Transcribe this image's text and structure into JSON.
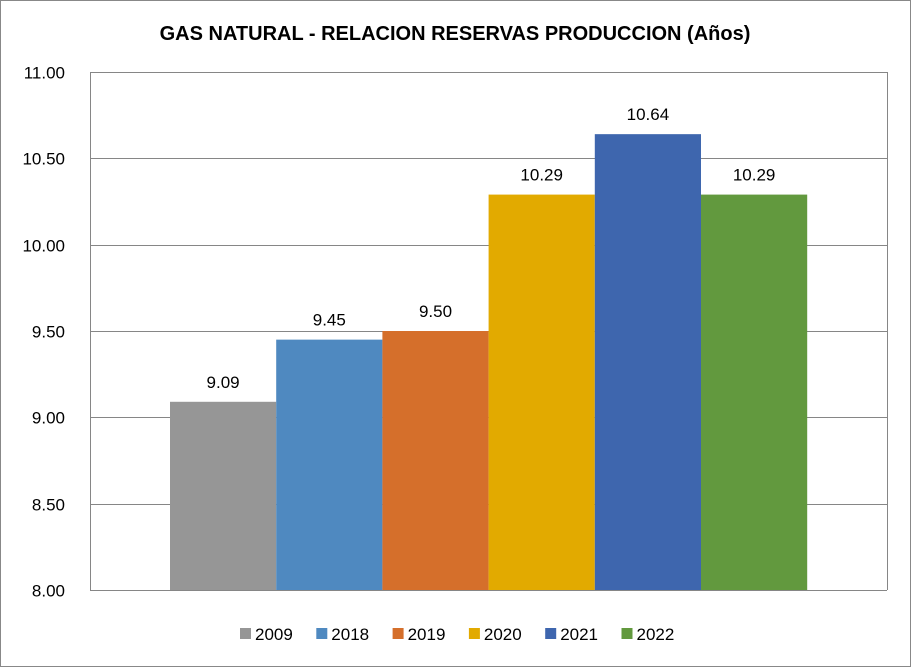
{
  "chart_data": {
    "type": "bar",
    "title": "GAS NATURAL - RELACION RESERVAS PRODUCCION (Años)",
    "xlabel": "",
    "ylabel": "",
    "ylim": [
      8.0,
      11.0
    ],
    "yticks": [
      "8.00",
      "8.50",
      "9.00",
      "9.50",
      "10.00",
      "10.50",
      "11.00"
    ],
    "grid": true,
    "legend_position": "bottom",
    "series": [
      {
        "name": "2009",
        "value": 9.09,
        "label": "9.09",
        "color": "#969696"
      },
      {
        "name": "2018",
        "value": 9.45,
        "label": "9.45",
        "color": "#4f89c0"
      },
      {
        "name": "2019",
        "value": 9.5,
        "label": "9.50",
        "color": "#d56f2b"
      },
      {
        "name": "2020",
        "value": 10.29,
        "label": "10.29",
        "color": "#e2aa00"
      },
      {
        "name": "2021",
        "value": 10.64,
        "label": "10.64",
        "color": "#3e66ae"
      },
      {
        "name": "2022",
        "value": 10.29,
        "label": "10.29",
        "color": "#62993e"
      }
    ]
  }
}
